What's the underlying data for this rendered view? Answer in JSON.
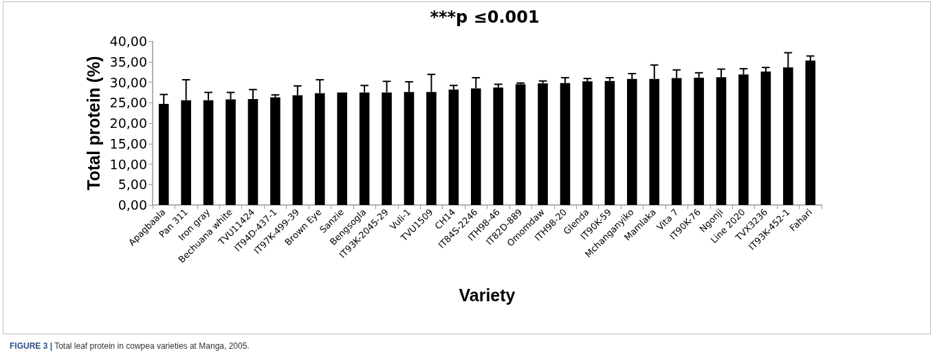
{
  "chart_data": {
    "type": "bar",
    "title": "***p ≤0.001",
    "xlabel": "Variety",
    "ylabel": "Total protein (%)",
    "categories": [
      "Apagbaala",
      "Pan 311",
      "Iron gray",
      "Bechuana white",
      "TVU11424",
      "IT94D-437-1",
      "IT97K-499-39",
      "Brown Eye",
      "Sanzie",
      "Bengsogla",
      "IT93K-2045-29",
      "Vuli-1",
      "TVU1509",
      "CH14",
      "IT84S-2246",
      "ITH98-46",
      "IT82D-889",
      "Omomdaw",
      "ITH98-20",
      "Glenda",
      "IT90K-59",
      "Mchanganyiko",
      "Mamlaka",
      "Vita 7",
      "IT90K-76",
      "Ngonji",
      "Line 2020",
      "TVX3236",
      "IT93K-452-1",
      "Fahari"
    ],
    "values": [
      24.7,
      25.6,
      25.6,
      25.8,
      25.9,
      26.3,
      26.8,
      27.3,
      27.5,
      27.5,
      27.5,
      27.6,
      27.6,
      28.2,
      28.5,
      28.7,
      29.5,
      29.7,
      29.8,
      30.2,
      30.3,
      30.8,
      30.8,
      31.0,
      31.1,
      31.2,
      31.9,
      32.6,
      33.6,
      35.3
    ],
    "errors": [
      2.3,
      5.0,
      1.9,
      1.7,
      2.3,
      0.6,
      2.3,
      3.3,
      null,
      1.7,
      2.7,
      2.5,
      4.3,
      1.0,
      2.6,
      0.8,
      0.3,
      0.6,
      1.3,
      0.7,
      0.8,
      1.3,
      3.4,
      2.0,
      1.2,
      2.0,
      1.4,
      1.0,
      3.6,
      1.1
    ],
    "color": "#000000",
    "ylim": [
      0,
      40
    ],
    "yticks": [
      {
        "value": 0,
        "label": "0,00"
      },
      {
        "value": 5,
        "label": "5,00"
      },
      {
        "value": 10,
        "label": "10,00"
      },
      {
        "value": 15,
        "label": "15,00"
      },
      {
        "value": 20,
        "label": "20,00"
      },
      {
        "value": 25,
        "label": "25,00"
      },
      {
        "value": 30,
        "label": "30,00"
      },
      {
        "value": 35,
        "label": "35,00"
      },
      {
        "value": 40,
        "label": "40,00"
      }
    ],
    "grid": false,
    "annotations": [
      "FIGURE 3 | Total leaf protein in cowpea varieties at Manga, 2005."
    ]
  }
}
